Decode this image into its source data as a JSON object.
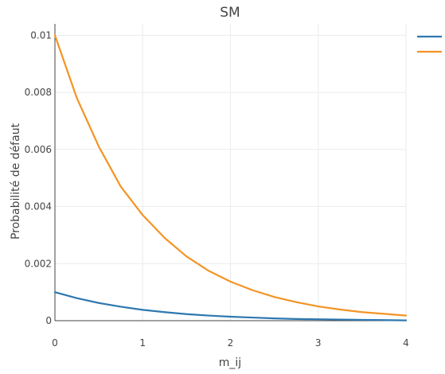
{
  "chart_data": {
    "type": "line",
    "title": "SM",
    "xlabel": "m_ij",
    "ylabel": "Probabilité de défaut",
    "xlim": [
      0,
      4
    ],
    "ylim": [
      0,
      0.0104
    ],
    "x_ticks": [
      "0",
      "1",
      "2",
      "3",
      "4"
    ],
    "y_ticks": [
      "0",
      "0.002",
      "0.004",
      "0.006",
      "0.008",
      "0.01"
    ],
    "grid": true,
    "legend": {
      "position": "top-right",
      "entries": [
        {
          "name": "",
          "color": "#2e78b0"
        },
        {
          "name": "",
          "color": "#f39424"
        }
      ]
    },
    "series": [
      {
        "color": "#2e78b0",
        "x": [
          0,
          0.25,
          0.5,
          0.75,
          1,
          1.25,
          1.5,
          1.75,
          2,
          2.25,
          2.5,
          2.75,
          3,
          3.25,
          3.5,
          3.75,
          4
        ],
        "y": [
          0.001,
          0.00079,
          0.00062,
          0.00049,
          0.00038,
          0.0003,
          0.00023,
          0.00018,
          0.00014,
          0.00011,
          8e-05,
          6e-05,
          5e-05,
          4e-05,
          3e-05,
          2e-05,
          1e-05
        ]
      },
      {
        "color": "#f39424",
        "x": [
          0,
          0.25,
          0.5,
          0.75,
          1,
          1.25,
          1.5,
          1.75,
          2,
          2.25,
          2.5,
          2.75,
          3,
          3.25,
          3.5,
          3.75,
          4
        ],
        "y": [
          0.01,
          0.0078,
          0.0061,
          0.0047,
          0.0037,
          0.0029,
          0.00225,
          0.00175,
          0.00137,
          0.00107,
          0.00083,
          0.00065,
          0.0005,
          0.00039,
          0.0003,
          0.00024,
          0.00018
        ]
      }
    ]
  }
}
